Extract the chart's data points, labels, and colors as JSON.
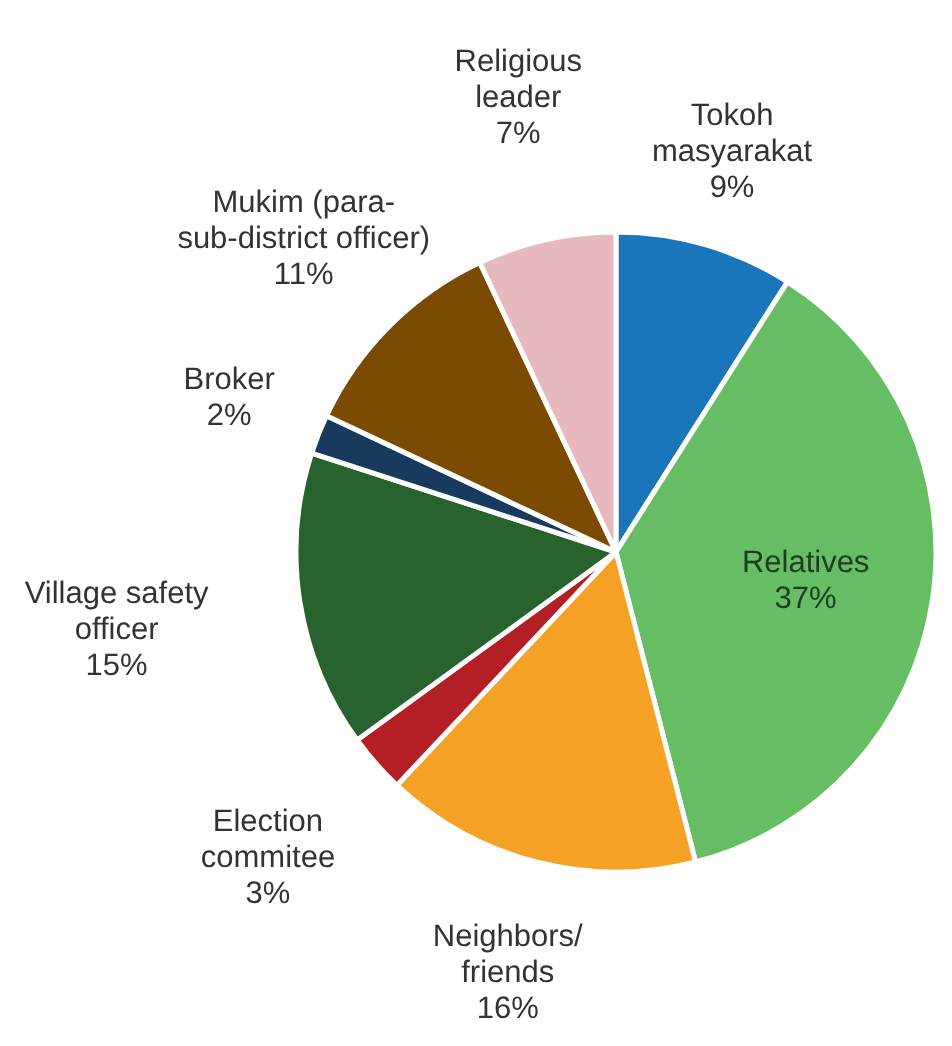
{
  "chart_data": {
    "type": "pie",
    "categories": [
      "Tokoh masyarakat",
      "Relatives",
      "Neighbors/friends",
      "Election commitee",
      "Village safety officer",
      "Broker",
      "Mukim (para-sub-district officer)",
      "Religious leader"
    ],
    "values": [
      9,
      37,
      16,
      3,
      15,
      2,
      11,
      7
    ],
    "colors": [
      "#1b75bb",
      "#66bd63",
      "#f5a126",
      "#b31f24",
      "#27622f",
      "#173a5e",
      "#7b4b04",
      "#e6b9be"
    ],
    "value_labels": [
      "9%",
      "37%",
      "16%",
      "3%",
      "15%",
      "2%",
      "11%",
      "7%"
    ]
  }
}
